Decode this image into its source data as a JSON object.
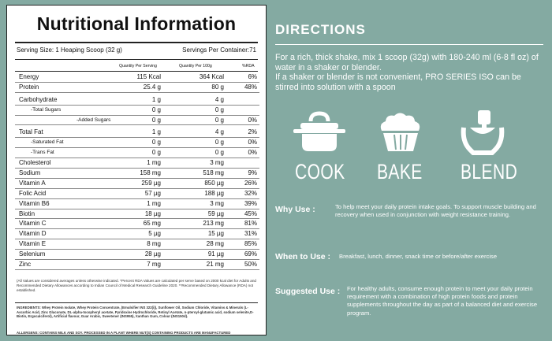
{
  "panel": {
    "title": "Nutritional Information",
    "serving_size": "Serving Size: 1 Heaping Scoop (32 g)",
    "servings_per_container": "Servings Per Container:71",
    "col_per_serving": "Quantity Per Serving",
    "col_per_100g": "Quantity Per 100g",
    "col_rda": "%RDA",
    "rows": [
      {
        "name": "Energy",
        "per_serving": "115 Kcal",
        "per_100g": "364 Kcal",
        "rda": "6%"
      },
      {
        "name": "Protein",
        "per_serving": "25.4 g",
        "per_100g": "80 g",
        "rda": "48%"
      },
      {
        "name": "Carbohydrate",
        "per_serving": "1 g",
        "per_100g": "4 g",
        "rda": ""
      },
      {
        "name": "-Total Sugars",
        "per_serving": "0 g",
        "per_100g": "0 g",
        "rda": ""
      },
      {
        "name": "-Added Sugars",
        "per_serving": "0 g",
        "per_100g": "0 g",
        "rda": "0%"
      },
      {
        "name": "Total Fat",
        "per_serving": "1 g",
        "per_100g": "4 g",
        "rda": "2%"
      },
      {
        "name": "-Saturated Fat",
        "per_serving": "0 g",
        "per_100g": "0 g",
        "rda": "0%"
      },
      {
        "name": "-Trans Fat",
        "per_serving": "0 g",
        "per_100g": "0 g",
        "rda": "0%"
      },
      {
        "name": "Cholesterol",
        "per_serving": "1 mg",
        "per_100g": "3 mg",
        "rda": ""
      },
      {
        "name": "Sodium",
        "per_serving": "158 mg",
        "per_100g": "518 mg",
        "rda": "9%"
      },
      {
        "name": "Vitamin A",
        "per_serving": "259 µg",
        "per_100g": "850 µg",
        "rda": "26%"
      },
      {
        "name": "Folic Acid",
        "per_serving": "57 µg",
        "per_100g": "188 µg",
        "rda": "32%"
      },
      {
        "name": "Vitamin B6",
        "per_serving": "1 mg",
        "per_100g": "3 mg",
        "rda": "39%"
      },
      {
        "name": "Biotin",
        "per_serving": "18 µg",
        "per_100g": "59 µg",
        "rda": "45%"
      },
      {
        "name": "Vitamin C",
        "per_serving": "65 mg",
        "per_100g": "213 mg",
        "rda": "81%"
      },
      {
        "name": "Vitamin D",
        "per_serving": "5 µg",
        "per_100g": "15 µg",
        "rda": "31%"
      },
      {
        "name": "Vitamin E",
        "per_serving": "8 mg",
        "per_100g": "28 mg",
        "rda": "85%"
      },
      {
        "name": "Selenium",
        "per_serving": "28 µg",
        "per_100g": "91 µg",
        "rda": "69%"
      },
      {
        "name": "Zinc",
        "per_serving": "7 mg",
        "per_100g": "21 mg",
        "rda": "50%"
      }
    ],
    "notes": "(All Values are considered averages unless otherwise indicated. *Percent RDA Values are calculated per serve based on 2000 kcal diet for Adults and Recommended Dietary Allowances according to Indian Council of Medical Research Guideline 2020. **Recommended Dietary Allowance (RDA) not established.",
    "ingredients": "INGREDIENTS: Whey Protein Isolate, Whey Protein Concentrate, (Emulsifier INS 322(i)), Sunflower Oil, Sodium Chloride, Vitamins & Minerals (L-Ascorbic Acid, Zinc Gluconate, DL-alpha-tocopheryl acetate, Pyridoxine Hydrochloride, Retinyl Acetate, n-pteroyl-glutamic acid, sodium selenite,D-Biotin, Ergocalciferol), Artificial flavour, Guar Arabic, Sweetener (INS955), Xanthan Gum, Colour (INS150d).",
    "allergen": "ALLERGENS: CONTAINS MILK AND SOY. PROCESSED IN A PLANT WHERE NUT(S) CONTAINING PRODUCTS ARE MANUFACTURED"
  },
  "directions": {
    "heading": "DIRECTIONS",
    "line1": "For a rich, thick shake, mix 1 scoop (32g) with 180-240 ml (6-8 fl oz) of water in a shaker or blender.",
    "line2": "If a shaker or blender is not convenient, PRO SERIES ISO can be stirred into solution with a spoon",
    "methods": [
      {
        "icon": "cooking-pot-icon",
        "label": "COOK"
      },
      {
        "icon": "muffin-icon",
        "label": "BAKE"
      },
      {
        "icon": "blender-icon",
        "label": "BLEND"
      }
    ],
    "why_use_label": "Why Use :",
    "why_use_text": "To help meet your daily protein intake goals. To support muscle building and recovery when used in conjunction with weight resistance training.",
    "when_label": "When to Use :",
    "when_text": "Breakfast, lunch, dinner, snack time or before/after exercise",
    "suggested_label": "Suggested Use :",
    "suggested_text": "For healthy adults, consume enough protein to meet your daily protein requirement with a combination of high protein foods and protein supplements throughout the day as part of a balanced diet and exercise program."
  },
  "colors": {
    "background": "#84aaa2",
    "panel": "#ffffff",
    "text_light": "#ffffff"
  }
}
